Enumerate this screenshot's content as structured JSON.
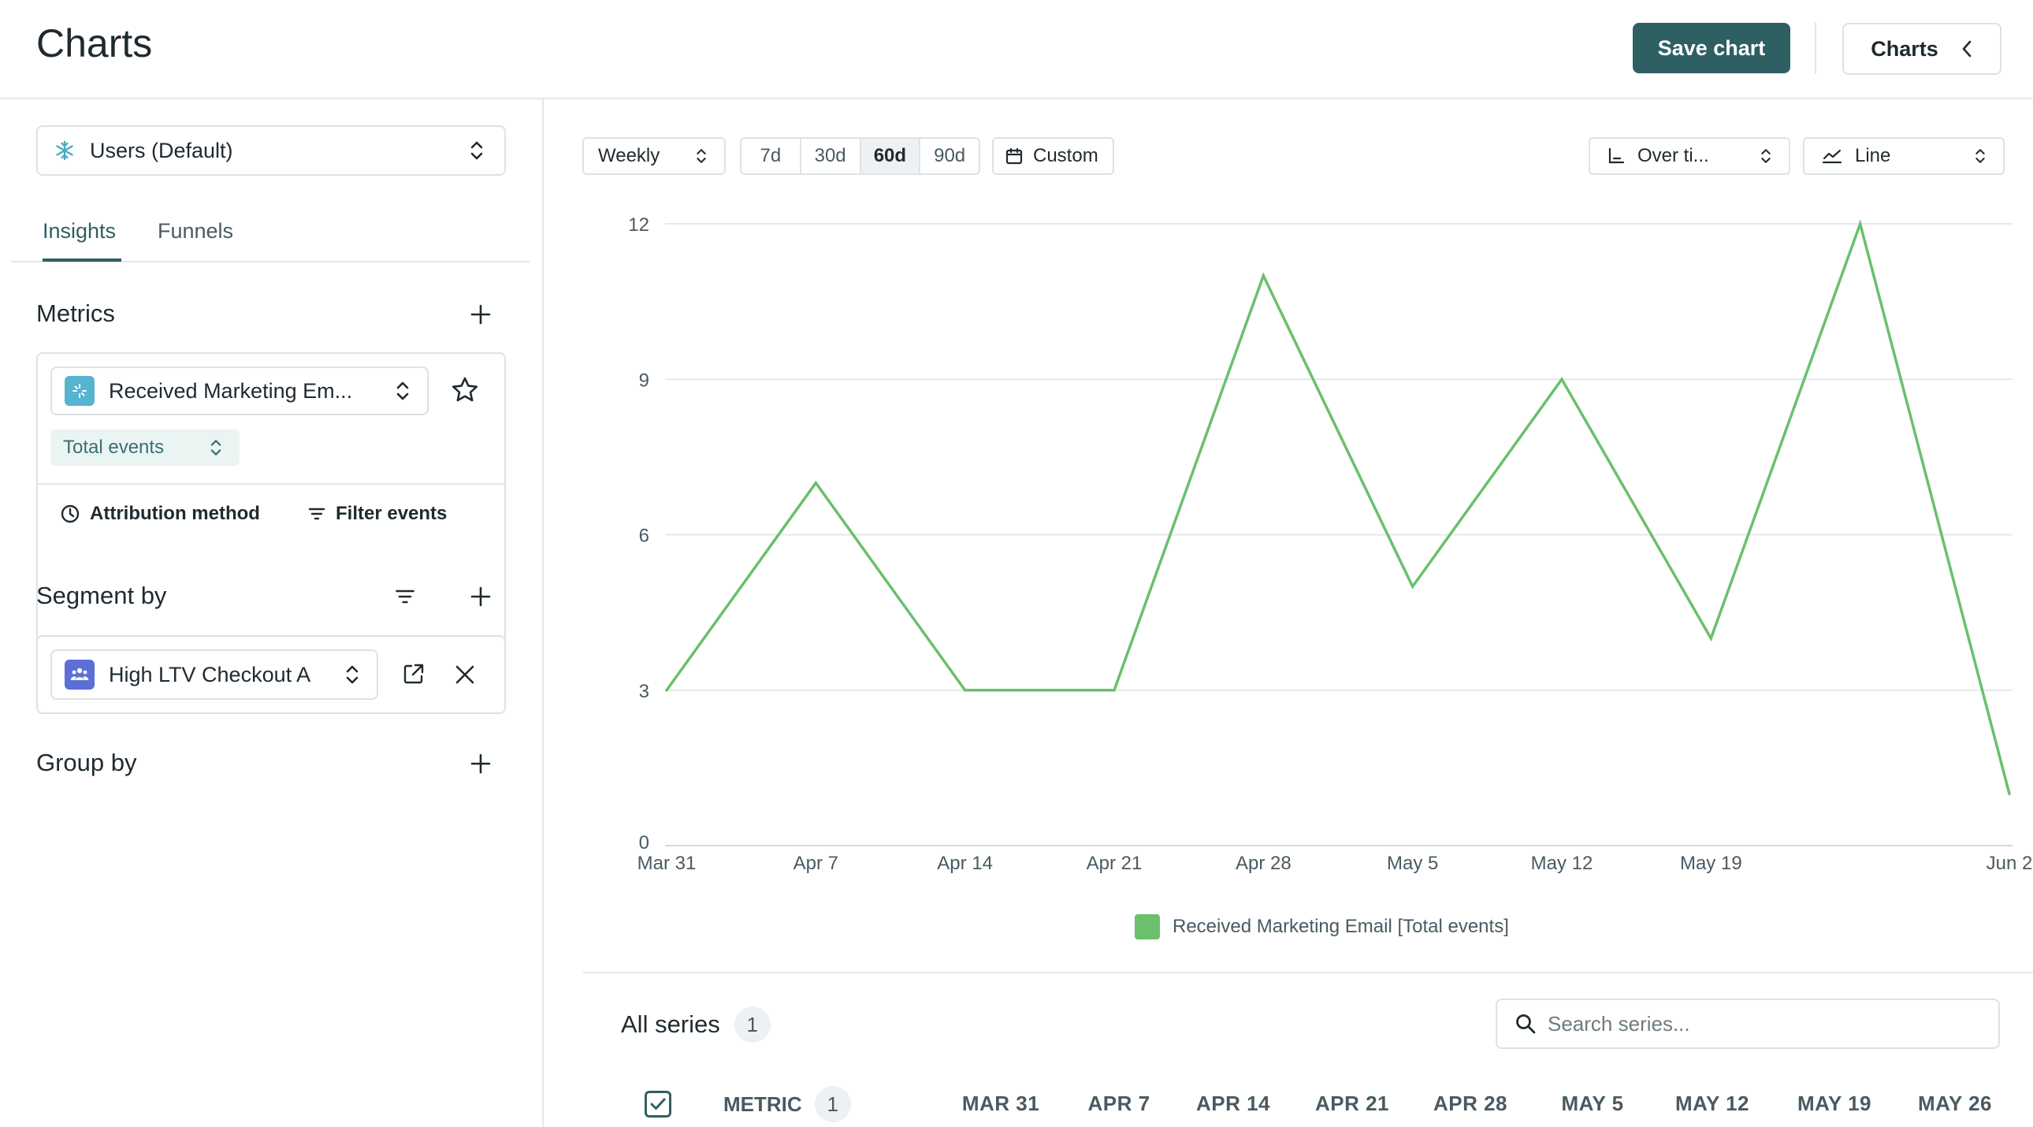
{
  "header": {
    "title": "Charts",
    "save_label": "Save chart",
    "charts_label": "Charts"
  },
  "left": {
    "entity_select": "Users (Default)",
    "tabs": [
      {
        "label": "Insights",
        "active": true
      },
      {
        "label": "Funnels",
        "active": false
      }
    ],
    "metrics": {
      "title": "Metrics",
      "metric_name": "Received Marketing Em...",
      "aggregation": "Total events",
      "attribution_label": "Attribution method",
      "filter_label": "Filter events"
    },
    "segment": {
      "title": "Segment by",
      "segment_name": "High LTV Checkout A"
    },
    "group": {
      "title": "Group by"
    }
  },
  "controls": {
    "interval": "Weekly",
    "ranges": [
      {
        "label": "7d",
        "active": false
      },
      {
        "label": "30d",
        "active": false
      },
      {
        "label": "60d",
        "active": true
      },
      {
        "label": "90d",
        "active": false
      }
    ],
    "custom_label": "Custom",
    "mode": "Over ti...",
    "chart_type": "Line"
  },
  "chart_data": {
    "type": "line",
    "x_tick_labels": [
      "Mar 31",
      "Apr 7",
      "Apr 14",
      "Apr 21",
      "Apr 28",
      "May 5",
      "May 12",
      "May 19",
      "Jun 2"
    ],
    "y_ticks": [
      0,
      3,
      6,
      9,
      12
    ],
    "ylim": [
      0,
      12
    ],
    "grid": true,
    "legend_position": "bottom-center",
    "series": [
      {
        "name": "Received Marketing Email [Total events]",
        "color": "#6ac06c",
        "x": [
          "Mar 31",
          "Apr 7",
          "Apr 14",
          "Apr 21",
          "Apr 28",
          "May 5",
          "May 12",
          "May 19",
          "May 26",
          "Jun 2"
        ],
        "values": [
          3,
          7,
          3,
          3,
          11,
          5,
          9,
          4,
          12,
          1
        ]
      }
    ]
  },
  "series_table": {
    "title": "All series",
    "count": "1",
    "search_placeholder": "Search series...",
    "metric_header": "METRIC",
    "metric_count": "1",
    "date_columns": [
      "MAR 31",
      "APR 7",
      "APR 14",
      "APR 21",
      "APR 28",
      "MAY 5",
      "MAY 12",
      "MAY 19",
      "MAY 26"
    ]
  },
  "colors": {
    "accent": "#2e5f63",
    "series": "#6ac06c"
  }
}
